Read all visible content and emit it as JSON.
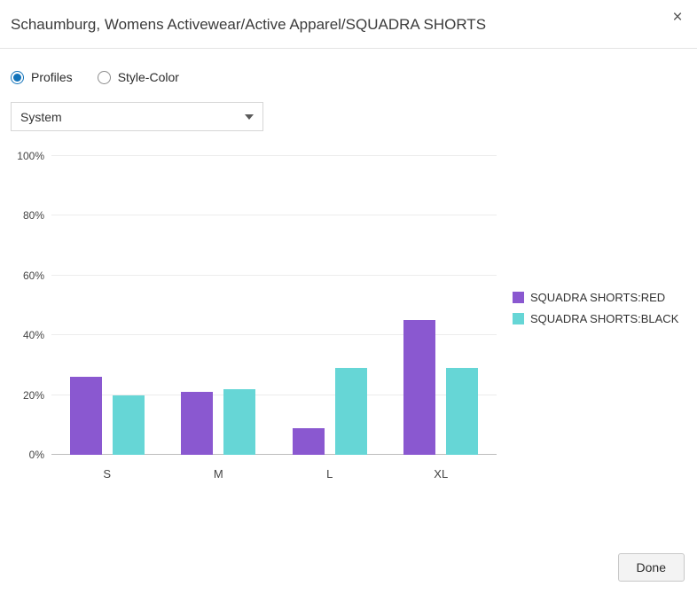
{
  "dialog": {
    "title": "Schaumburg, Womens Activewear/Active Apparel/SQUADRA SHORTS",
    "close_label": "×"
  },
  "controls": {
    "radios": [
      {
        "label": "Profiles",
        "selected": true
      },
      {
        "label": "Style-Color",
        "selected": false
      }
    ],
    "dropdown": {
      "selected_value": "System"
    }
  },
  "chart_data": {
    "type": "bar",
    "categories": [
      "S",
      "M",
      "L",
      "XL"
    ],
    "series": [
      {
        "name": "SQUADRA SHORTS:RED",
        "color": "#8a58d0",
        "values": [
          26,
          21,
          9,
          45
        ]
      },
      {
        "name": "SQUADRA SHORTS:BLACK",
        "color": "#66d6d6",
        "values": [
          20,
          22,
          29,
          29
        ]
      }
    ],
    "title": "",
    "xlabel": "",
    "ylabel": "",
    "ylim": [
      0,
      100
    ],
    "ytick_step": 20,
    "ytick_format": "percent",
    "grid": true,
    "legend_position": "right"
  },
  "footer": {
    "done_label": "Done"
  }
}
